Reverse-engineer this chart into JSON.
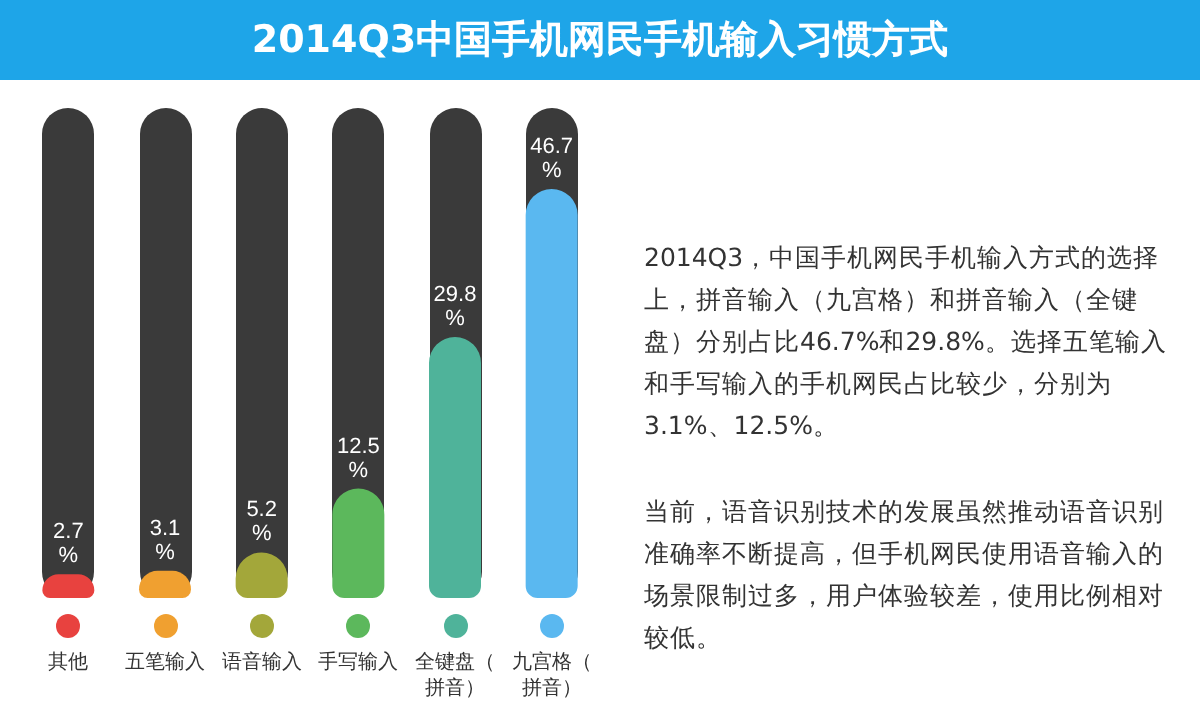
{
  "chart_data": {
    "type": "bar",
    "title": "2014Q3中国手机网民手机输入习惯方式",
    "categories": [
      "其他",
      "五笔输入",
      "语音输入",
      "手写输入",
      "全键盘（拼音）",
      "九宫格（拼音）"
    ],
    "values": [
      2.7,
      3.1,
      5.2,
      12.5,
      29.8,
      46.7
    ],
    "colors": [
      "#e8423f",
      "#f0a030",
      "#a3a73a",
      "#5cb85c",
      "#4fb39a",
      "#5ab8f0"
    ],
    "value_labels": [
      "2.7%",
      "3.1%",
      "5.2%",
      "12.5%",
      "29.8%",
      "46.7%"
    ],
    "annotations": [
      "2014Q3，中国手机网民手机输入方式的选择上，拼音输入（九宫格）和拼音输入（全键盘）分别占比46.7%和29.8%。选择五笔输入和手写输入的手机网民占比较少，分别为3.1%、12.5%。",
      "当前，语音识别技术的发展虽然推动语音识别准确率不断提高，但手机网民使用语音输入的场景限制过多，用户体验较差，使用比例相对较低。"
    ]
  }
}
